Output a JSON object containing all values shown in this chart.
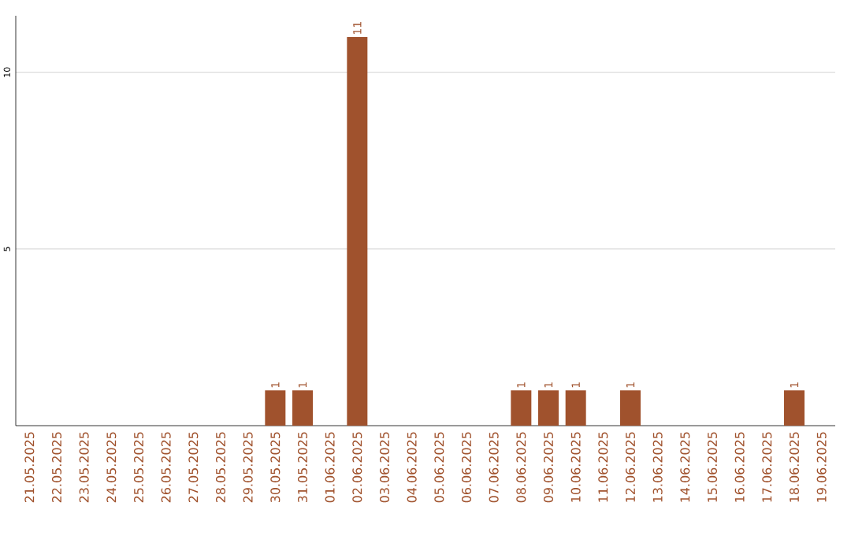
{
  "chart_data": {
    "type": "bar",
    "categories": [
      "21.05.2025",
      "22.05.2025",
      "23.05.2025",
      "24.05.2025",
      "25.05.2025",
      "26.05.2025",
      "27.05.2025",
      "28.05.2025",
      "29.05.2025",
      "30.05.2025",
      "31.05.2025",
      "01.06.2025",
      "02.06.2025",
      "03.06.2025",
      "04.06.2025",
      "05.06.2025",
      "06.06.2025",
      "07.06.2025",
      "08.06.2025",
      "09.06.2025",
      "10.06.2025",
      "11.06.2025",
      "12.06.2025",
      "13.06.2025",
      "14.06.2025",
      "15.06.2025",
      "16.06.2025",
      "17.06.2025",
      "18.06.2025",
      "19.06.2025"
    ],
    "values": [
      0,
      0,
      0,
      0,
      0,
      0,
      0,
      0,
      0,
      1,
      1,
      0,
      11,
      0,
      0,
      0,
      0,
      0,
      1,
      1,
      1,
      0,
      1,
      0,
      0,
      0,
      0,
      0,
      1,
      0
    ],
    "value_labels": [
      null,
      null,
      null,
      null,
      null,
      null,
      null,
      null,
      null,
      "1",
      "1",
      null,
      "11",
      null,
      null,
      null,
      null,
      null,
      "1",
      "1",
      "1",
      null,
      "1",
      null,
      null,
      null,
      null,
      null,
      "1",
      null
    ],
    "color": "#a0522d",
    "ylim": [
      0,
      11.6
    ],
    "yticks": [
      5,
      10
    ],
    "grid": "y"
  }
}
